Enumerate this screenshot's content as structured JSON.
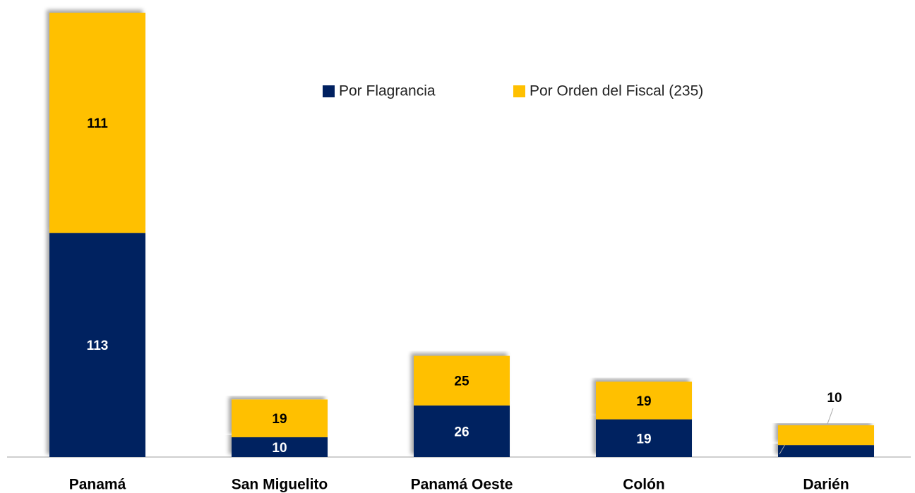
{
  "chart_data": {
    "type": "stacked_bar",
    "categories": [
      "Panamá",
      "San Miguelito",
      "Panamá Oeste",
      "Colón",
      "Darién"
    ],
    "series": [
      {
        "name": "Por Flagrancia",
        "color": "#002060",
        "values": [
          113,
          10,
          26,
          19,
          6
        ]
      },
      {
        "name": "Por Orden del Fiscal (235)",
        "color": "#FFC000",
        "values": [
          111,
          19,
          25,
          19,
          10
        ]
      }
    ]
  }
}
